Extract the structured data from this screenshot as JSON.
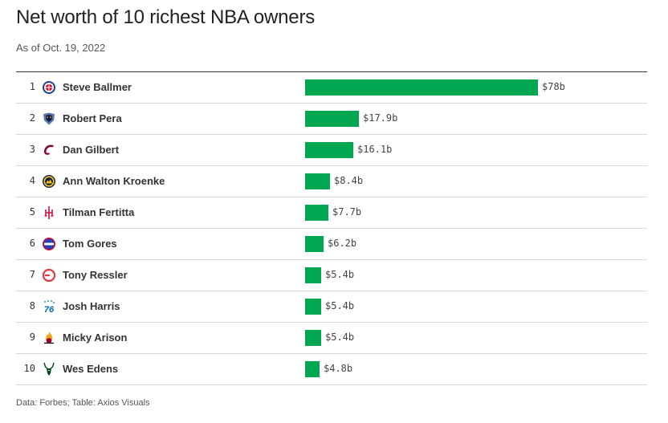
{
  "header": {
    "title": "Net worth of 10 richest NBA owners",
    "subtitle": "As of Oct. 19, 2022"
  },
  "footer": {
    "source": "Data: Forbes; Table: Axios Visuals"
  },
  "colors": {
    "bar": "#00a650"
  },
  "chart_data": {
    "type": "bar",
    "title": "Net worth of 10 richest NBA owners",
    "subtitle": "As of Oct. 19, 2022",
    "unit": "billions USD",
    "categories": [
      "Steve Ballmer",
      "Robert Pera",
      "Dan Gilbert",
      "Ann Walton Kroenke",
      "Tilman Fertitta",
      "Tom Gores",
      "Tony Ressler",
      "Josh Harris",
      "Micky Arison",
      "Wes Edens"
    ],
    "values": [
      78,
      17.9,
      16.1,
      8.4,
      7.7,
      6.2,
      5.4,
      5.4,
      5.4,
      4.8
    ],
    "rows": [
      {
        "rank": "1",
        "name": "Steve Ballmer",
        "value": 78,
        "label": "$78b",
        "logo": "clippers-logo-icon"
      },
      {
        "rank": "2",
        "name": "Robert Pera",
        "value": 17.9,
        "label": "$17.9b",
        "logo": "grizzlies-logo-icon"
      },
      {
        "rank": "3",
        "name": "Dan Gilbert",
        "value": 16.1,
        "label": "$16.1b",
        "logo": "cavaliers-logo-icon"
      },
      {
        "rank": "4",
        "name": "Ann Walton Kroenke",
        "value": 8.4,
        "label": "$8.4b",
        "logo": "nuggets-logo-icon"
      },
      {
        "rank": "5",
        "name": "Tilman Fertitta",
        "value": 7.7,
        "label": "$7.7b",
        "logo": "rockets-logo-icon"
      },
      {
        "rank": "6",
        "name": "Tom Gores",
        "value": 6.2,
        "label": "$6.2b",
        "logo": "pistons-logo-icon"
      },
      {
        "rank": "7",
        "name": "Tony Ressler",
        "value": 5.4,
        "label": "$5.4b",
        "logo": "hawks-logo-icon"
      },
      {
        "rank": "8",
        "name": "Josh Harris",
        "value": 5.4,
        "label": "$5.4b",
        "logo": "76ers-logo-icon"
      },
      {
        "rank": "9",
        "name": "Micky Arison",
        "value": 5.4,
        "label": "$5.4b",
        "logo": "heat-logo-icon"
      },
      {
        "rank": "10",
        "name": "Wes Edens",
        "value": 4.8,
        "label": "$4.8b",
        "logo": "bucks-logo-icon"
      }
    ],
    "logo_text": {
      "sixers": "76"
    }
  }
}
